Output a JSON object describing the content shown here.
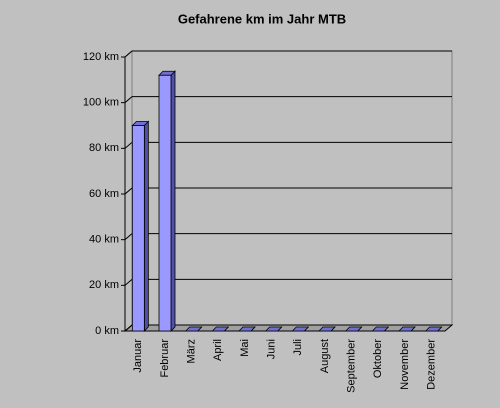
{
  "chart_data": {
    "type": "bar3d",
    "title": "Gefahrene km im Jahr MTB",
    "categories": [
      "Januar",
      "Februar",
      "März",
      "April",
      "Mai",
      "Juni",
      "Juli",
      "August",
      "September",
      "Oktober",
      "November",
      "Dezember"
    ],
    "values": [
      90,
      112,
      0,
      0,
      0,
      0,
      0,
      0,
      0,
      0,
      0,
      0
    ],
    "color": "#9999ff",
    "ylim": [
      0,
      120
    ],
    "yticks": [
      {
        "value": 0,
        "label": "0 km"
      },
      {
        "value": 20,
        "label": "20 km"
      },
      {
        "value": 40,
        "label": "40 km"
      },
      {
        "value": 60,
        "label": "60 km"
      },
      {
        "value": 80,
        "label": "80 km"
      },
      {
        "value": 100,
        "label": "100 km"
      },
      {
        "value": 120,
        "label": "120 km"
      }
    ],
    "grid": true
  }
}
